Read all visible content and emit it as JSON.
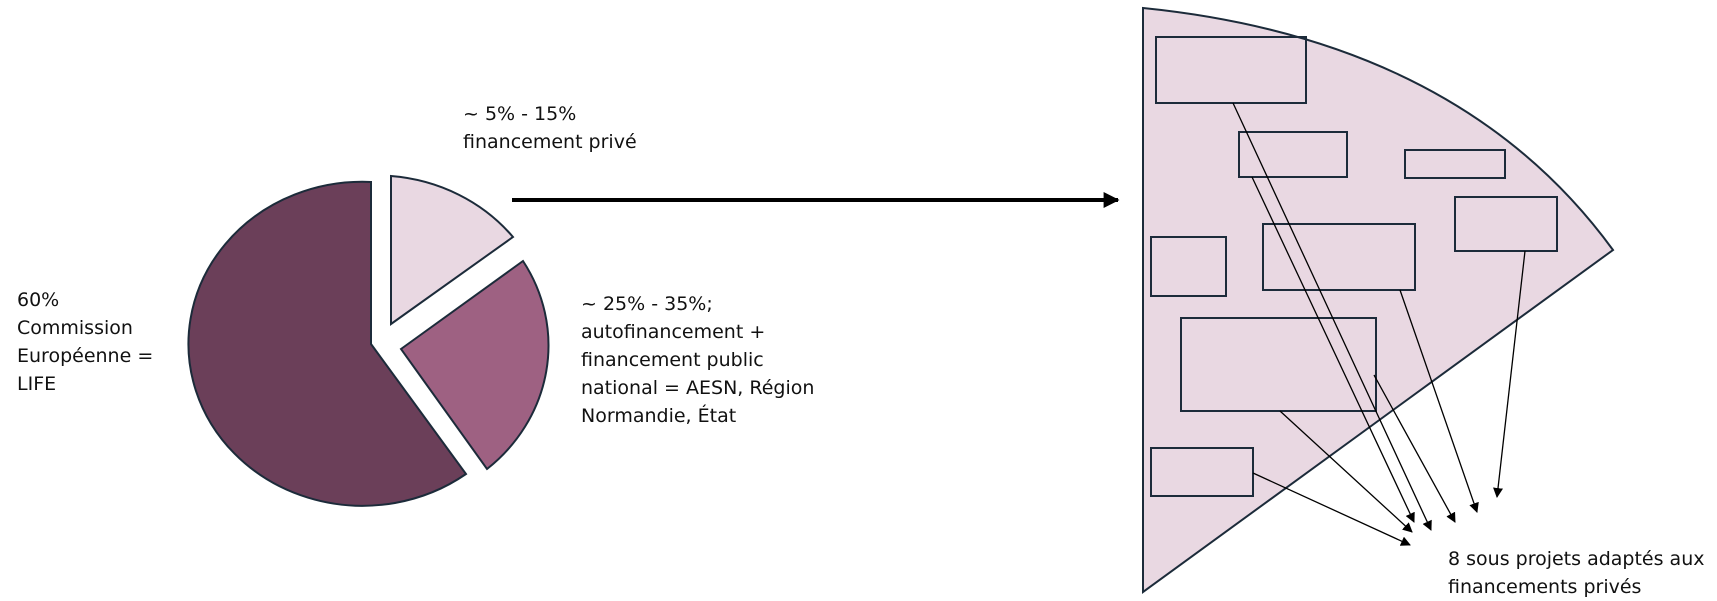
{
  "pie": {
    "slices": [
      {
        "label": "60%\nCommission\nEuropéenne =\nLIFE",
        "value": 60,
        "color": "#6b3f59",
        "exploded": false
      },
      {
        "label": "~ 5% - 15%\nfinancement privé",
        "value": 15,
        "color": "#e9d8e2",
        "exploded": true
      },
      {
        "label": "~ 25% - 35%;\nautofinancement +\nfinancement public\nnational = AESN, Région\nNormandie, État",
        "value": 25,
        "color": "#9e6182",
        "exploded": true
      }
    ],
    "stroke_color": "#1c2b3a"
  },
  "zoom": {
    "fill": "#e9d8e2",
    "stroke_color": "#1c2b3a",
    "sub_project_count": 8,
    "label": "8 sous projets adaptés aux\nfinancements privés"
  },
  "connector_color": "#000000"
}
